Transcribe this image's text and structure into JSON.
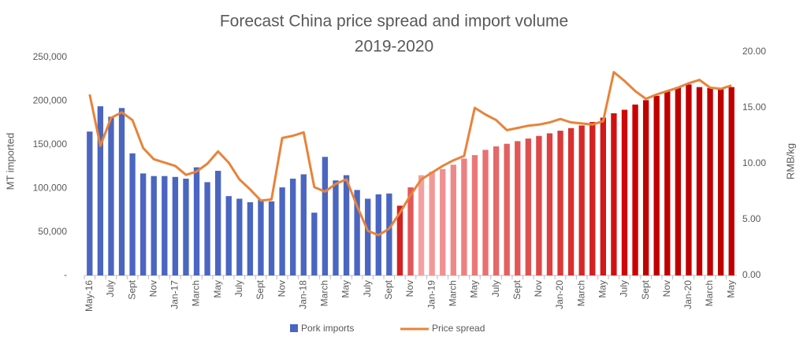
{
  "chart_data": {
    "type": "combo",
    "title": [
      "Forecast China price spread and import volume",
      "2019-2020"
    ],
    "y_label": "MT imported",
    "y2_label": "RMB/kg",
    "categories": [
      "May-16",
      null,
      "July",
      null,
      "Sept",
      null,
      "Nov",
      null,
      "Jan-17",
      null,
      "March",
      null,
      "May",
      null,
      "July",
      null,
      "Sept",
      null,
      "Nov",
      null,
      "Jan-18",
      null,
      "March",
      null,
      "May",
      null,
      "July",
      null,
      "Sept",
      null,
      "Nov",
      null,
      "Jan-19",
      null,
      "March",
      null,
      "May",
      null,
      "July",
      null,
      "Sept",
      null,
      "Nov",
      null,
      "Jan-20",
      null,
      "March",
      null,
      "May",
      null,
      "July",
      null,
      "Sept",
      null,
      "Nov",
      null,
      "Jan-20",
      null,
      "March",
      null,
      "May"
    ],
    "series": [
      {
        "name": "Pork imports",
        "type": "bar",
        "color": "#4a66c0",
        "values": [
          165000,
          194000,
          182000,
          192000,
          140000,
          117000,
          114000,
          114000,
          113000,
          111000,
          124000,
          107000,
          120000,
          91000,
          88000,
          84000,
          87000,
          85000,
          101000,
          111000,
          116000,
          72000,
          136000,
          109000,
          115000,
          98000,
          88000,
          93000,
          94000,
          80000,
          101000,
          115000,
          119000,
          122000,
          127000,
          134000,
          138000,
          144000,
          148000,
          151000,
          154000,
          157000,
          160000,
          163000,
          166000,
          169000,
          172000,
          176000,
          181000,
          186000,
          190000,
          196000,
          201000,
          206000,
          211000,
          216000,
          219000,
          216000,
          215000,
          215000,
          216000
        ],
        "colors": [
          "#4a66c0",
          "#4a66c0",
          "#4a66c0",
          "#4a66c0",
          "#4a66c0",
          "#4a66c0",
          "#4a66c0",
          "#4a66c0",
          "#4a66c0",
          "#4a66c0",
          "#4a66c0",
          "#4a66c0",
          "#4a66c0",
          "#4a66c0",
          "#4a66c0",
          "#4a66c0",
          "#4a66c0",
          "#4a66c0",
          "#4a66c0",
          "#4a66c0",
          "#4a66c0",
          "#4a66c0",
          "#4a66c0",
          "#4a66c0",
          "#4a66c0",
          "#4a66c0",
          "#4a66c0",
          "#4a66c0",
          "#4a66c0",
          "#d42020",
          "#e25858",
          "#f4a0a0",
          "#f29898",
          "#f09090",
          "#ee8888",
          "#ec8080",
          "#ea7878",
          "#e87070",
          "#e66868",
          "#e46060",
          "#e25858",
          "#e05050",
          "#de4848",
          "#dc4040",
          "#da3838",
          "#d83030",
          "#d62828",
          "#d42020",
          "#d21818",
          "#d01010",
          "#ce0808",
          "#cc0000",
          "#c00000",
          "#c00000",
          "#c00000",
          "#c00000",
          "#c00000",
          "#c00000",
          "#c00000",
          "#c00000",
          "#c00000"
        ]
      },
      {
        "name": "Price spread",
        "type": "line",
        "axis": "y2",
        "color": "#e8833a",
        "values": [
          16.2,
          11.6,
          14.1,
          14.6,
          13.9,
          11.4,
          10.4,
          10.1,
          9.8,
          9.0,
          9.3,
          10.0,
          11.1,
          10.1,
          8.6,
          7.7,
          6.7,
          6.8,
          12.3,
          12.5,
          12.8,
          7.9,
          7.5,
          8.2,
          8.6,
          6.2,
          4.0,
          3.6,
          4.2,
          5.6,
          7.2,
          8.6,
          9.2,
          9.8,
          10.3,
          10.7,
          15.0,
          14.4,
          13.9,
          13.0,
          13.2,
          13.4,
          13.5,
          13.7,
          14.0,
          13.7,
          13.6,
          13.5,
          13.8,
          18.2,
          17.4,
          16.5,
          15.8,
          16.2,
          16.5,
          16.8,
          17.2,
          17.5,
          16.8,
          16.7,
          17.0
        ]
      }
    ],
    "ylim": [
      0,
      250000
    ],
    "yticks": [
      {
        "value": 0,
        "label": "-"
      },
      {
        "value": 50000,
        "label": "50,000"
      },
      {
        "value": 100000,
        "label": "100,000"
      },
      {
        "value": 150000,
        "label": "150,000"
      },
      {
        "value": 200000,
        "label": "200,000"
      },
      {
        "value": 250000,
        "label": "250,000"
      }
    ],
    "y2lim": [
      0,
      20
    ],
    "y2ticks": [
      {
        "value": 0,
        "label": "0.00"
      },
      {
        "value": 5,
        "label": "5.00"
      },
      {
        "value": 10,
        "label": "10.00"
      },
      {
        "value": 15,
        "label": "15.00"
      },
      {
        "value": 20,
        "label": "20.00"
      }
    ],
    "grid": false,
    "legend": "bottom"
  }
}
